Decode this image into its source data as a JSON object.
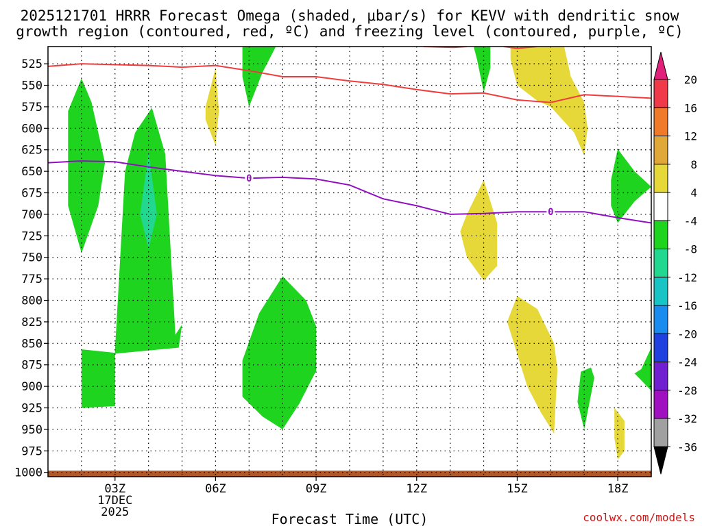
{
  "chart_data": {
    "type": "contour",
    "title_line1": "2025121701 HRRR Forecast Omega (shaded, μbar/s) for KEVV with dendritic snow",
    "title_line2": "growth region (contoured, red, ºC) and freezing level (contoured, purple, ºC)",
    "xlabel": "Forecast Time (UTC)",
    "x_range_hours": [
      1,
      19
    ],
    "y_range_hpa": [
      505,
      1005
    ],
    "x_ticks": [
      {
        "hour": 3,
        "label": "03Z",
        "sub1": "17DEC",
        "sub2": "2025"
      },
      {
        "hour": 6,
        "label": "06Z"
      },
      {
        "hour": 9,
        "label": "09Z"
      },
      {
        "hour": 12,
        "label": "12Z"
      },
      {
        "hour": 15,
        "label": "15Z"
      },
      {
        "hour": 18,
        "label": "18Z"
      }
    ],
    "y_ticks": [
      525,
      550,
      575,
      600,
      625,
      650,
      675,
      700,
      725,
      750,
      775,
      800,
      825,
      850,
      875,
      900,
      925,
      950,
      975,
      1000
    ],
    "colorbar": {
      "labels": [
        "20",
        "16",
        "12",
        "8",
        "4",
        "-4",
        "-8",
        "-12",
        "-16",
        "-20",
        "-24",
        "-28",
        "-32",
        "-36"
      ],
      "bins": [
        {
          "color": "#f03a4a"
        },
        {
          "color": "#f07a28"
        },
        {
          "color": "#e0a838"
        },
        {
          "color": "#e6d838"
        },
        {
          "color": "#ffffff"
        },
        {
          "color": "#1fd41f"
        },
        {
          "color": "#22d890"
        },
        {
          "color": "#18c4c4"
        },
        {
          "color": "#1a8cf0"
        },
        {
          "color": "#2040e0"
        },
        {
          "color": "#7020d0"
        },
        {
          "color": "#a010c0"
        },
        {
          "color": "#a0a0a0"
        }
      ],
      "top_color": "#e0207a",
      "bottom_color": "#000000"
    },
    "dgz_contour": {
      "color": "#f03c3c",
      "points": [
        [
          1,
          528
        ],
        [
          2,
          525
        ],
        [
          3,
          526
        ],
        [
          4,
          527
        ],
        [
          5,
          529
        ],
        [
          6,
          527
        ],
        [
          7,
          533
        ],
        [
          8,
          540
        ],
        [
          9,
          540
        ],
        [
          10,
          545
        ],
        [
          11,
          549
        ],
        [
          12,
          555
        ],
        [
          13,
          560
        ],
        [
          14,
          559
        ],
        [
          15,
          567
        ],
        [
          16,
          570
        ],
        [
          17,
          561
        ],
        [
          18,
          563
        ],
        [
          19,
          565
        ]
      ]
    },
    "upper_dgz_contour": {
      "color": "#f03c3c",
      "points": [
        [
          12.2,
          505
        ],
        [
          13.1,
          506
        ],
        [
          13.5,
          505
        ]
      ]
    },
    "upper_dgz_contour2": {
      "color": "#f03c3c",
      "points": [
        [
          14.6,
          505
        ],
        [
          15,
          507
        ],
        [
          15.6,
          505
        ]
      ]
    },
    "freezing_level": {
      "color": "#9010c0",
      "label": "0",
      "label_points": [
        [
          7,
          658
        ],
        [
          16,
          697
        ]
      ],
      "points": [
        [
          1,
          640
        ],
        [
          2,
          638
        ],
        [
          3,
          639
        ],
        [
          4,
          645
        ],
        [
          5,
          650
        ],
        [
          6,
          655
        ],
        [
          7,
          658
        ],
        [
          8,
          657
        ],
        [
          9,
          659
        ],
        [
          10,
          666
        ],
        [
          11,
          682
        ],
        [
          12,
          690
        ],
        [
          13,
          700
        ],
        [
          14,
          699
        ],
        [
          15,
          697
        ],
        [
          16,
          697
        ],
        [
          17,
          697
        ],
        [
          18,
          704
        ],
        [
          19,
          710
        ]
      ]
    },
    "omega_regions": [
      {
        "band": "-8 to -4",
        "color": "#1fd41f",
        "points": [
          [
            2,
            542
          ],
          [
            2.3,
            570
          ],
          [
            2.7,
            640
          ],
          [
            2.5,
            690
          ],
          [
            2,
            745
          ],
          [
            1.6,
            690
          ],
          [
            1.6,
            640
          ],
          [
            1.6,
            580
          ]
        ]
      },
      {
        "band": "-8 to -4",
        "color": "#1fd41f",
        "points": [
          [
            3.0,
            857
          ],
          [
            3.3,
            650
          ],
          [
            3.6,
            605
          ],
          [
            4.1,
            576
          ],
          [
            4.5,
            630
          ],
          [
            4.6,
            700
          ],
          [
            4.8,
            840
          ],
          [
            5.0,
            828
          ],
          [
            4.9,
            855
          ],
          [
            3.0,
            862
          ]
        ]
      },
      {
        "band": "-12 to -8",
        "color": "#22d890",
        "points": [
          [
            4.0,
            628
          ],
          [
            4.25,
            700
          ],
          [
            4.0,
            740
          ],
          [
            3.75,
            700
          ]
        ]
      },
      {
        "band": "-8 to -4",
        "color": "#1fd41f",
        "points": [
          [
            2,
            857
          ],
          [
            3,
            861
          ],
          [
            3,
            923
          ],
          [
            2,
            925
          ]
        ]
      },
      {
        "band": "-8 to -4",
        "color": "#1fd41f",
        "points": [
          [
            6.8,
            505
          ],
          [
            7.8,
            505
          ],
          [
            7.4,
            535
          ],
          [
            7,
            575
          ],
          [
            6.8,
            540
          ]
        ]
      },
      {
        "band": "-8 to -4",
        "color": "#1fd41f",
        "points": [
          [
            8.0,
            772
          ],
          [
            8.7,
            800
          ],
          [
            9.0,
            830
          ],
          [
            9.0,
            882
          ],
          [
            8.5,
            920
          ],
          [
            8.0,
            950
          ],
          [
            7.4,
            935
          ],
          [
            6.8,
            912
          ],
          [
            6.8,
            870
          ],
          [
            7.3,
            815
          ]
        ]
      },
      {
        "band": "-8 to -4",
        "color": "#1fd41f",
        "points": [
          [
            13.7,
            505
          ],
          [
            14.2,
            505
          ],
          [
            14.2,
            530
          ],
          [
            14.0,
            558
          ],
          [
            13.8,
            520
          ]
        ]
      },
      {
        "band": "-8 to -4",
        "color": "#1fd41f",
        "points": [
          [
            18.0,
            624
          ],
          [
            18.5,
            650
          ],
          [
            19.0,
            668
          ],
          [
            18.5,
            685
          ],
          [
            18.0,
            710
          ],
          [
            17.8,
            690
          ],
          [
            17.8,
            660
          ]
        ]
      },
      {
        "band": "-8 to -4",
        "color": "#1fd41f",
        "points": [
          [
            16.9,
            883
          ],
          [
            17.2,
            878
          ],
          [
            17.3,
            890
          ],
          [
            17.0,
            950
          ],
          [
            16.8,
            918
          ]
        ]
      },
      {
        "band": "-8 to -4",
        "color": "#1fd41f",
        "points": [
          [
            18.7,
            880
          ],
          [
            19,
            855
          ],
          [
            19,
            905
          ],
          [
            18.5,
            885
          ]
        ]
      },
      {
        "band": "4 to 8",
        "color": "#e6d838",
        "points": [
          [
            5.7,
            575
          ],
          [
            6.0,
            530
          ],
          [
            6.1,
            580
          ],
          [
            6.0,
            620
          ],
          [
            5.7,
            590
          ]
        ]
      },
      {
        "band": "4 to 8",
        "color": "#e6d838",
        "points": [
          [
            14.8,
            505
          ],
          [
            16.4,
            505
          ],
          [
            16.6,
            540
          ],
          [
            17.0,
            570
          ],
          [
            17.1,
            600
          ],
          [
            17.0,
            632
          ],
          [
            16.7,
            605
          ],
          [
            16.0,
            575
          ],
          [
            15.6,
            568
          ],
          [
            15.0,
            550
          ],
          [
            14.8,
            520
          ]
        ]
      },
      {
        "band": "4 to 8",
        "color": "#e6d838",
        "points": [
          [
            13.5,
            700
          ],
          [
            14.0,
            660
          ],
          [
            14.4,
            710
          ],
          [
            14.4,
            760
          ],
          [
            14.0,
            777
          ],
          [
            13.5,
            750
          ],
          [
            13.3,
            720
          ]
        ]
      },
      {
        "band": "4 to 8",
        "color": "#e6d838",
        "points": [
          [
            15.0,
            795
          ],
          [
            15.6,
            810
          ],
          [
            16.1,
            850
          ],
          [
            16.2,
            880
          ],
          [
            16.1,
            955
          ],
          [
            15.7,
            930
          ],
          [
            15.3,
            900
          ],
          [
            14.9,
            850
          ],
          [
            14.7,
            825
          ]
        ]
      },
      {
        "band": "4 to 8",
        "color": "#e6d838",
        "points": [
          [
            17.9,
            925
          ],
          [
            18.2,
            940
          ],
          [
            18.2,
            975
          ],
          [
            18.0,
            985
          ],
          [
            17.9,
            960
          ]
        ]
      }
    ],
    "terrain": {
      "color": "#b05828",
      "top_hpa": 998
    }
  },
  "credit": "coolwx.com/models"
}
